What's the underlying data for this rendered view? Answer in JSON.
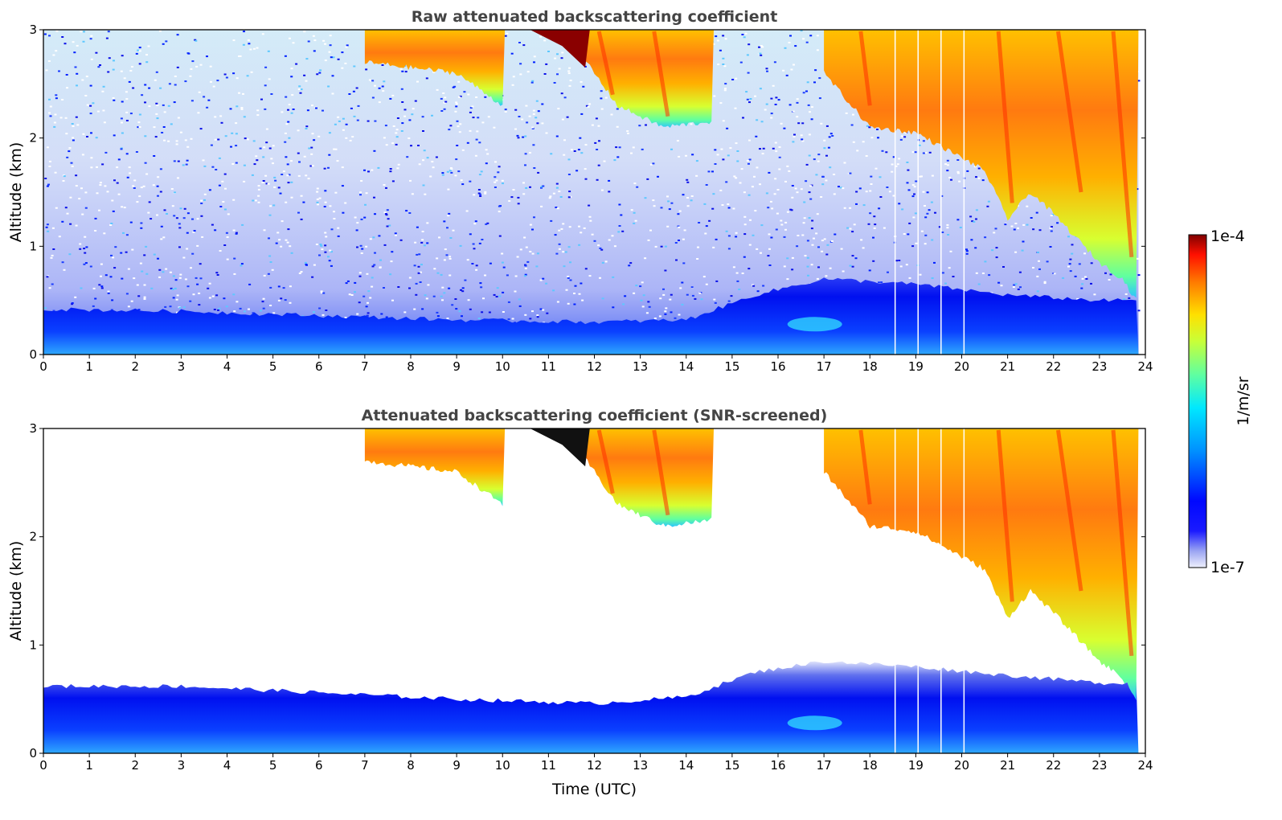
{
  "chart_data": [
    {
      "type": "heatmap",
      "title": "Raw attenuated backscattering coefficient",
      "xlabel": "",
      "ylabel": "Altitude (km)",
      "xlim": [
        0,
        24
      ],
      "ylim": [
        0,
        3
      ],
      "x_ticks": [
        "0",
        "1",
        "2",
        "3",
        "4",
        "5",
        "6",
        "7",
        "8",
        "9",
        "10",
        "11",
        "12",
        "13",
        "14",
        "15",
        "16",
        "17",
        "18",
        "19",
        "20",
        "21",
        "22",
        "23",
        "24"
      ],
      "y_ticks": [
        "0",
        "1",
        "2",
        "3"
      ],
      "data_end_hour": 23.85,
      "gap_lines_hours": [
        18.55,
        19.05,
        19.55,
        20.05
      ],
      "boundary_layer_top_km": {
        "hours": [
          0,
          3,
          6,
          9,
          12,
          14,
          15.5,
          17,
          19,
          21,
          23
        ],
        "values": [
          0.42,
          0.4,
          0.36,
          0.32,
          0.3,
          0.32,
          0.55,
          0.7,
          0.65,
          0.55,
          0.5
        ]
      },
      "cloud_base_km": {
        "hours": [
          7,
          9,
          10,
          11.5,
          12.5,
          13.5,
          14.5,
          17,
          18,
          19,
          20.5,
          21,
          21.5,
          22,
          23,
          23.5,
          23.8
        ],
        "values": [
          2.7,
          2.6,
          2.3,
          2.9,
          2.3,
          2.1,
          2.15,
          2.6,
          2.1,
          2.05,
          1.7,
          1.25,
          1.5,
          1.3,
          0.85,
          0.7,
          0.5
        ]
      },
      "colorbar": {
        "min": "1e-7",
        "max": "1e-4",
        "label": "1/m/sr",
        "scale": "log",
        "colormap": "jet"
      }
    },
    {
      "type": "heatmap",
      "title": "Attenuated backscattering coefficient (SNR-screened)",
      "xlabel": "Time (UTC)",
      "ylabel": "Altitude (km)",
      "xlim": [
        0,
        24
      ],
      "ylim": [
        0,
        3
      ],
      "x_ticks": [
        "0",
        "1",
        "2",
        "3",
        "4",
        "5",
        "6",
        "7",
        "8",
        "9",
        "10",
        "11",
        "12",
        "13",
        "14",
        "15",
        "16",
        "17",
        "18",
        "19",
        "20",
        "21",
        "22",
        "23",
        "24"
      ],
      "y_ticks": [
        "0",
        "1",
        "2",
        "3"
      ],
      "data_end_hour": 23.85,
      "gap_lines_hours": [
        18.55,
        19.05,
        19.55,
        20.05
      ],
      "boundary_layer_top_km": {
        "hours": [
          0,
          3,
          6,
          9,
          12,
          14,
          15.5,
          17,
          19,
          21,
          23
        ],
        "values": [
          0.62,
          0.62,
          0.56,
          0.5,
          0.46,
          0.52,
          0.75,
          0.85,
          0.8,
          0.72,
          0.65
        ]
      },
      "cloud_base_km": {
        "hours": [
          7,
          9,
          10,
          11.5,
          12.5,
          13.5,
          14.5,
          17,
          18,
          19,
          20.5,
          21,
          21.5,
          22,
          23,
          23.5,
          23.8
        ],
        "values": [
          2.7,
          2.6,
          2.3,
          2.9,
          2.3,
          2.1,
          2.15,
          2.6,
          2.1,
          2.05,
          1.7,
          1.25,
          1.5,
          1.3,
          0.85,
          0.7,
          0.5
        ]
      }
    }
  ],
  "colorbar": {
    "max_label": "1e-4",
    "min_label": "1e-7",
    "unit_label": "1/m/sr"
  }
}
